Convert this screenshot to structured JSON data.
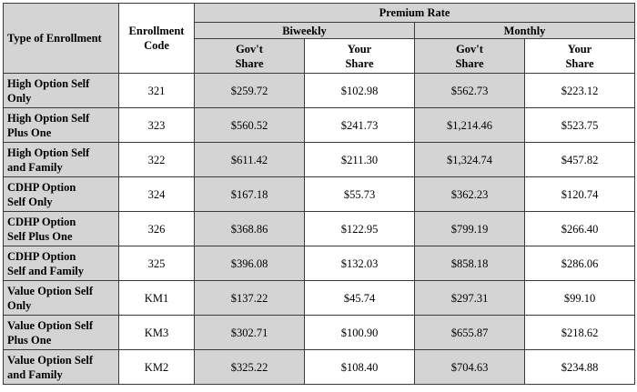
{
  "header": {
    "type_of_enrollment": "Type of Enrollment",
    "enrollment_code_line1": "Enrollment",
    "enrollment_code_line2": "Code",
    "premium_rate": "Premium Rate",
    "biweekly": "Biweekly",
    "monthly": "Monthly",
    "govt_share_line1": "Gov't",
    "govt_share_line2": "Share",
    "your_share_line1": "Your",
    "your_share_line2": "Share"
  },
  "rows": [
    {
      "type_line1": "High Option Self",
      "type_line2": "Only",
      "code": "321",
      "bi_gov": "$259.72",
      "bi_your": "$102.98",
      "mo_gov": "$562.73",
      "mo_your": "$223.12"
    },
    {
      "type_line1": "High Option Self",
      "type_line2": "Plus One",
      "code": "323",
      "bi_gov": "$560.52",
      "bi_your": "$241.73",
      "mo_gov": "$1,214.46",
      "mo_your": "$523.75"
    },
    {
      "type_line1": "High Option Self",
      "type_line2": "and Family",
      "code": "322",
      "bi_gov": "$611.42",
      "bi_your": "$211.30",
      "mo_gov": "$1,324.74",
      "mo_your": "$457.82"
    },
    {
      "type_line1": "CDHP Option",
      "type_line2": "Self Only",
      "code": "324",
      "bi_gov": "$167.18",
      "bi_your": "$55.73",
      "mo_gov": "$362.23",
      "mo_your": "$120.74"
    },
    {
      "type_line1": "CDHP Option",
      "type_line2": "Self Plus One",
      "code": "326",
      "bi_gov": "$368.86",
      "bi_your": "$122.95",
      "mo_gov": "$799.19",
      "mo_your": "$266.40"
    },
    {
      "type_line1": "CDHP Option",
      "type_line2": "Self and Family",
      "code": "325",
      "bi_gov": "$396.08",
      "bi_your": "$132.03",
      "mo_gov": "$858.18",
      "mo_your": "$286.06"
    },
    {
      "type_line1": "Value Option Self",
      "type_line2": "Only",
      "code": "KM1",
      "bi_gov": "$137.22",
      "bi_your": "$45.74",
      "mo_gov": "$297.31",
      "mo_your": "$99.10"
    },
    {
      "type_line1": "Value Option Self",
      "type_line2": "Plus One",
      "code": "KM3",
      "bi_gov": "$302.71",
      "bi_your": "$100.90",
      "mo_gov": "$655.87",
      "mo_your": "$218.62"
    },
    {
      "type_line1": "Value Option Self",
      "type_line2": "and Family",
      "code": "KM2",
      "bi_gov": "$325.22",
      "bi_your": "$108.40",
      "mo_gov": "$704.63",
      "mo_your": "$234.88"
    }
  ]
}
